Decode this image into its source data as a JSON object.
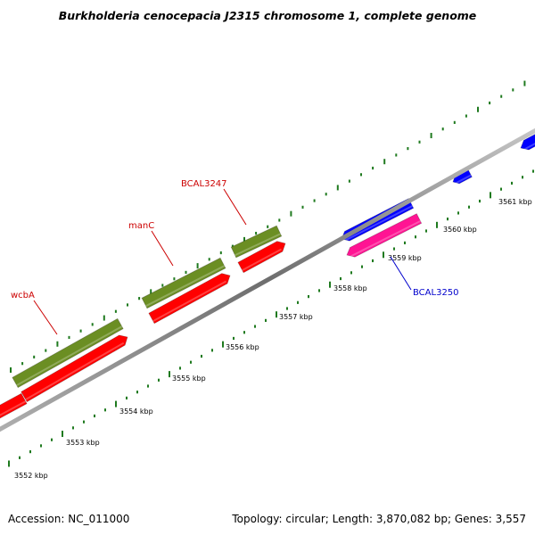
{
  "title": "Burkholderia cenocepacia J2315 chromosome 1, complete genome",
  "footer": {
    "accession": "Accession: NC_011000",
    "summary": "Topology: circular; Length: 3,870,082 bp; Genes: 3,557"
  },
  "ruler": {
    "tick_labels": [
      "3552 kbp",
      "3553 kbp",
      "3554 kbp",
      "3555 kbp",
      "3556 kbp",
      "3557 kbp",
      "3558 kbp",
      "3559 kbp",
      "3560 kbp",
      "3561 kbp"
    ]
  },
  "gene_labels": [
    {
      "text": "wcbA",
      "color": "#cc0000"
    },
    {
      "text": "manC",
      "color": "#cc0000"
    },
    {
      "text": "BCAL3247",
      "color": "#cc0000"
    },
    {
      "text": "BCAL3250",
      "color": "#0000cc"
    }
  ],
  "colors": {
    "backbone": "#8a8a8a",
    "ticks": "#1f7a1f",
    "olive_gene": "#6b8e23",
    "red_gene": "#ff0000",
    "blue_gene": "#0000ff",
    "pink_gene": "#ff1493"
  }
}
